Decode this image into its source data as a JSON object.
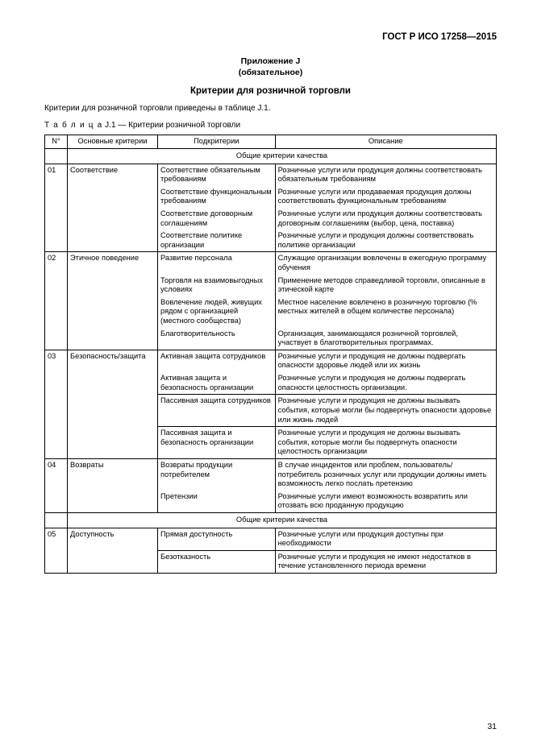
{
  "doc_id": "ГОСТ Р ИСО 17258—2015",
  "appendix_line1": "Приложение J",
  "appendix_line2": "(обязательное)",
  "section_title": "Критерии для розничной торговли",
  "intro_text": "Критерии для розничной торговли приведены в таблице J.1.",
  "table_caption_word": "Т а б л и ц а",
  "table_caption_rest": " J.1 — Критерии розничной торговли",
  "headers": {
    "num": "N°",
    "main": "Основные критерии",
    "sub": "Подкритерии",
    "desc": "Описание"
  },
  "section_head_1": "Общие критерии качества",
  "row01": {
    "num": "01",
    "main": "Соответствие",
    "s1": "Соответствие обязательным требованиям",
    "d1": "Розничные услуги или продукция должны соответствовать обязательным требованиям",
    "s2": "Соответствие функциональным требованиям",
    "d2": "Розничные услуги или продаваемая продукция должны соответствовать функциональным требованиям",
    "s3": "Соответствие договорным соглашениям",
    "d3": "Розничные услуги или продукция должны соответствовать договорным соглашениям (выбор, цена, поставка)",
    "s4": "Соответствие политике организации",
    "d4": "Розничные услуги и продукция должны соответствовать политике организации"
  },
  "row02": {
    "num": "02",
    "main": "Этичное поведение",
    "s1": "Развитие персонала",
    "d1": "Служащие организации вовлечены в ежегодную программу обучения",
    "s2": "Торговля на взаимовыгодных условиях",
    "d2": "Применение методов справедливой торговли, описанные в этической карте",
    "s3": "Вовлечение людей, живущих рядом с организацией (местного сообщества)",
    "d3": "Местное население вовлечено в розничную торговлю (% местных жителей в общем количестве персонала)",
    "s4": "Благотворительность",
    "d4": "Организация, занимающаяся розничной торговлей, участвует в благотворительных программах."
  },
  "row03": {
    "num": "03",
    "main": "Безопасность/защита",
    "s1": "Активная защита сотрудников",
    "d1": "Розничные услуги и продукция не должны подвергать опасности здоровье людей или их жизнь",
    "s2": "Активная защита и безопасность организации",
    "d2": "Розничные услуги и продукция не должны подвергать опасности целостность организации.",
    "s3": "Пассивная защита сотрудников",
    "d3": "Розничные услуги и продукция не должны вызывать события, которые могли бы подвергнуть опасности здоровье или жизнь людей",
    "s4": "Пассивная защита и безопасность организации",
    "d4": "Розничные услуги и продукция не должны вызывать события, которые могли бы подвергнуть опасности целостность организации"
  },
  "row04": {
    "num": "04",
    "main": "Возвраты",
    "s1": "Возвраты продукции потребителем",
    "d1": "В случае инцидентов или проблем, пользователь/потребитель розничных услуг или продукции должны иметь возможность легко послать претензию",
    "s2": "Претензии",
    "d2": "Розничные услуги имеют возможность возвратить или отозвать всю проданную продукцию"
  },
  "section_head_2": "Общие критерии качества",
  "row05": {
    "num": "05",
    "main": "Доступность",
    "s1": "Прямая доступность",
    "d1": "Розничные услуги или продукция доступны при необходимости",
    "s2": "Безотказность",
    "d2": "Розничные услуги и продукция не имеют недостатков в течение установленного периода времени"
  },
  "page_number": "31"
}
